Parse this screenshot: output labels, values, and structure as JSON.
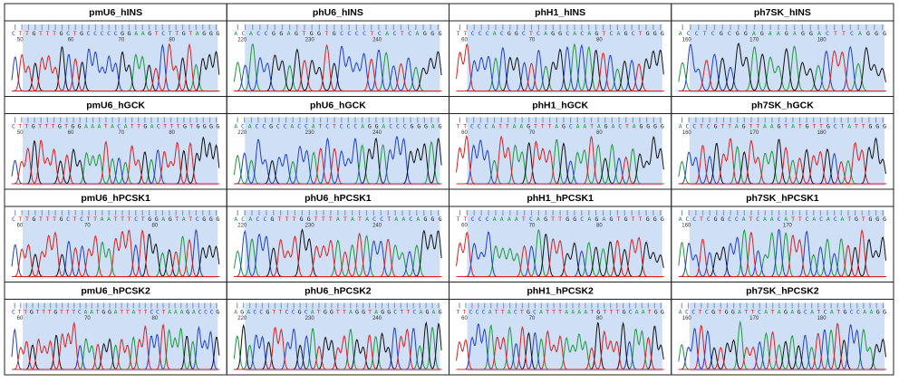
{
  "panels": [
    [
      {
        "title": "pmU6_hINS",
        "sequence": "CTTGTTTGCTGCCCCCGGAAGTCTTGTAGGG",
        "positions": [
          "50",
          "60",
          "70",
          "80"
        ]
      },
      {
        "title": "phU6_hINS",
        "sequence": "ACACCGGAGTGGTGCCCCTCACTCAGGG",
        "positions": [
          "220",
          "230",
          "240"
        ]
      },
      {
        "title": "phH1_hINS",
        "sequence": "TTCCCACGGCTCAGGCACAGTCAGCTGGG",
        "positions": [
          "60",
          "70",
          "80"
        ]
      },
      {
        "title": "ph7SK_hINS",
        "sequence": "ACCTCGCGGAGAAGAGGACTTCAGGG",
        "positions": [
          "160",
          "170",
          "180"
        ]
      }
    ],
    [
      {
        "title": "pmU6_hGCK",
        "sequence": "CTTGTTTGTGGAAATACATTGACTTTGTGGGG",
        "positions": [
          "50",
          "60",
          "70",
          "80"
        ]
      },
      {
        "title": "phU6_hGCK",
        "sequence": "ACACCGCCACCATCTCCCAGGACCCGGGAG",
        "positions": [
          "220",
          "230",
          "240"
        ]
      },
      {
        "title": "phH1_hGCK",
        "sequence": "TTCCCATTAAGTTTAGCAATAGACTAGGGG",
        "positions": [
          "60",
          "70",
          "80"
        ]
      },
      {
        "title": "ph7SK_hGCK",
        "sequence": "ACCTCGTTAGTTAAGTATGTTGCTATTGGG",
        "positions": [
          "160",
          "170",
          "180"
        ]
      }
    ],
    [
      {
        "title": "pmU6_hPCSK1",
        "sequence": "CTTGTTTGCTCTTAATTTCTGGAGTATCGGG",
        "positions": [
          "60",
          "70",
          "80"
        ]
      },
      {
        "title": "phU6_hPCSK1",
        "sequence": "ACACCGTTTGGTTTATATACCTAACAGGG",
        "positions": [
          "220",
          "230",
          "240"
        ]
      },
      {
        "title": "phH1_hPCSK1",
        "sequence": "TTCCCAAAATCAGTTGGCAGAGTGTTGGG",
        "positions": [
          "60",
          "70",
          "80"
        ]
      },
      {
        "title": "ph7SK_hPCSK1",
        "sequence": "ACCTCGGCCATCAACATTCACACATGTGGG",
        "positions": [
          "160",
          "170"
        ]
      }
    ],
    [
      {
        "title": "pmU6_hPCSK2",
        "sequence": "CTTGTTTGTTTCAATGGATTATTCCTAAAGACCCG",
        "positions": [
          "60",
          "70",
          "80"
        ]
      },
      {
        "title": "phU6_hPCSK2",
        "sequence": "AGACCGTTCCGCATGGTTAGGTAGGCTTCAGAG",
        "positions": [
          "220",
          "230",
          "240"
        ]
      },
      {
        "title": "phH1_hPCSK2",
        "sequence": "TTCCCATTACTGCATTTAAAATGTTTGCAATGG",
        "positions": [
          "60",
          "70",
          "80"
        ]
      },
      {
        "title": "ph7SK_hPCSK2",
        "sequence": "ACCTCGTGGATTCATAGAGCATCATGCCAAGG",
        "positions": [
          "160",
          "170",
          "180"
        ]
      }
    ]
  ]
}
